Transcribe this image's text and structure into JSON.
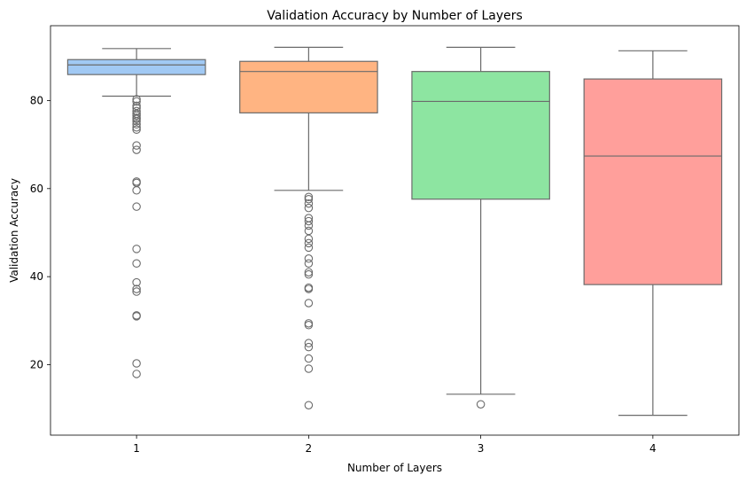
{
  "chart_data": {
    "type": "box",
    "title": "Validation Accuracy by Number of Layers",
    "xlabel": "Number of Layers",
    "ylabel": "Validation Accuracy",
    "ylim": [
      4,
      97
    ],
    "yticks": [
      20,
      40,
      60,
      80
    ],
    "grid": false,
    "categories": [
      "1",
      "2",
      "3",
      "4"
    ],
    "colors": [
      "#a1c9f4",
      "#ffb482",
      "#8de5a1",
      "#ff9f9b"
    ],
    "boxes": [
      {
        "category": "1",
        "whisker_low": 81.0,
        "q1": 85.9,
        "median": 88.1,
        "q3": 89.3,
        "whisker_high": 91.8,
        "outliers": [
          80.3,
          79.8,
          78.8,
          78.3,
          77.6,
          77.0,
          76.6,
          76.1,
          75.8,
          75.3,
          74.6,
          73.9,
          73.4,
          69.8,
          68.8,
          61.6,
          61.3,
          59.6,
          55.9,
          46.3,
          43.0,
          38.7,
          37.2,
          36.6,
          31.2,
          31.0,
          20.3,
          17.9
        ]
      },
      {
        "category": "2",
        "whisker_low": 59.6,
        "q1": 77.2,
        "median": 86.6,
        "q3": 88.9,
        "whisker_high": 92.1,
        "outliers": [
          58.1,
          57.6,
          56.6,
          55.6,
          53.3,
          52.6,
          51.6,
          50.4,
          48.6,
          47.6,
          46.6,
          44.1,
          43.0,
          41.0,
          40.5,
          37.5,
          37.2,
          34.0,
          29.4,
          29.0,
          24.9,
          24.0,
          21.4,
          19.1,
          10.8
        ]
      },
      {
        "category": "3",
        "whisker_low": 13.3,
        "q1": 57.6,
        "median": 79.8,
        "q3": 86.6,
        "whisker_high": 92.1,
        "outliers": [
          11.0
        ]
      },
      {
        "category": "4",
        "whisker_low": 8.5,
        "q1": 38.2,
        "median": 67.4,
        "q3": 84.9,
        "whisker_high": 91.3,
        "outliers": []
      }
    ]
  }
}
